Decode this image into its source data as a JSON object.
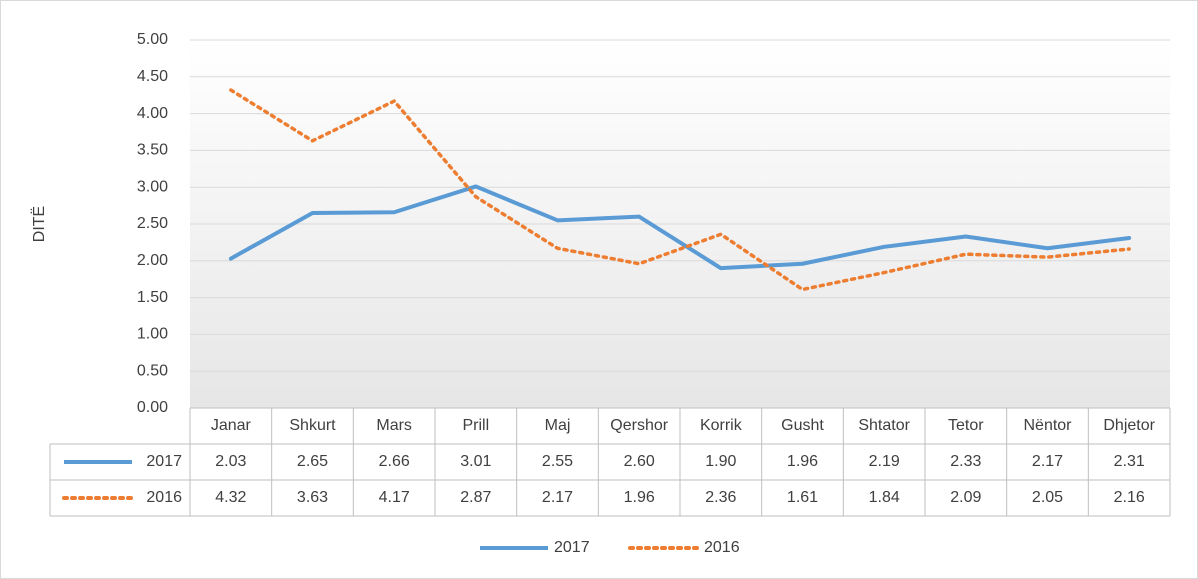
{
  "chart_data": {
    "type": "line",
    "y_label": "DITË",
    "categories": [
      "Janar",
      "Shkurt",
      "Mars",
      "Prill",
      "Maj",
      "Qershor",
      "Korrik",
      "Gusht",
      "Shtator",
      "Tetor",
      "Nëntor",
      "Dhjetor"
    ],
    "series": [
      {
        "name": "2017",
        "color": "#5b9bd5",
        "dash": "solid",
        "values": [
          2.03,
          2.65,
          2.66,
          3.01,
          2.55,
          2.6,
          1.9,
          1.96,
          2.19,
          2.33,
          2.17,
          2.31
        ],
        "value_labels": [
          "2.03",
          "2.65",
          "2.66",
          "3.01",
          "2.55",
          "2.60",
          "1.90",
          "1.96",
          "2.19",
          "2.33",
          "2.17",
          "2.31"
        ]
      },
      {
        "name": "2016",
        "color": "#ed7d31",
        "dash": "dotted",
        "values": [
          4.32,
          3.63,
          4.17,
          2.87,
          2.17,
          1.96,
          2.36,
          1.61,
          1.84,
          2.09,
          2.05,
          2.16
        ],
        "value_labels": [
          "4.32",
          "3.63",
          "4.17",
          "2.87",
          "2.17",
          "1.96",
          "2.36",
          "1.61",
          "1.84",
          "2.09",
          "2.05",
          "2.16"
        ]
      }
    ],
    "ylim": [
      0,
      5
    ],
    "yticks": [
      {
        "value": 0,
        "label": "0.00"
      },
      {
        "value": 0.5,
        "label": "0.50"
      },
      {
        "value": 1,
        "label": "1.00"
      },
      {
        "value": 1.5,
        "label": "1.50"
      },
      {
        "value": 2,
        "label": "2.00"
      },
      {
        "value": 2.5,
        "label": "2.50"
      },
      {
        "value": 3,
        "label": "3.00"
      },
      {
        "value": 3.5,
        "label": "3.50"
      },
      {
        "value": 4,
        "label": "4.00"
      },
      {
        "value": 4.5,
        "label": "4.50"
      },
      {
        "value": 5,
        "label": "5.00"
      }
    ],
    "grid": true,
    "legend": "bottom"
  }
}
